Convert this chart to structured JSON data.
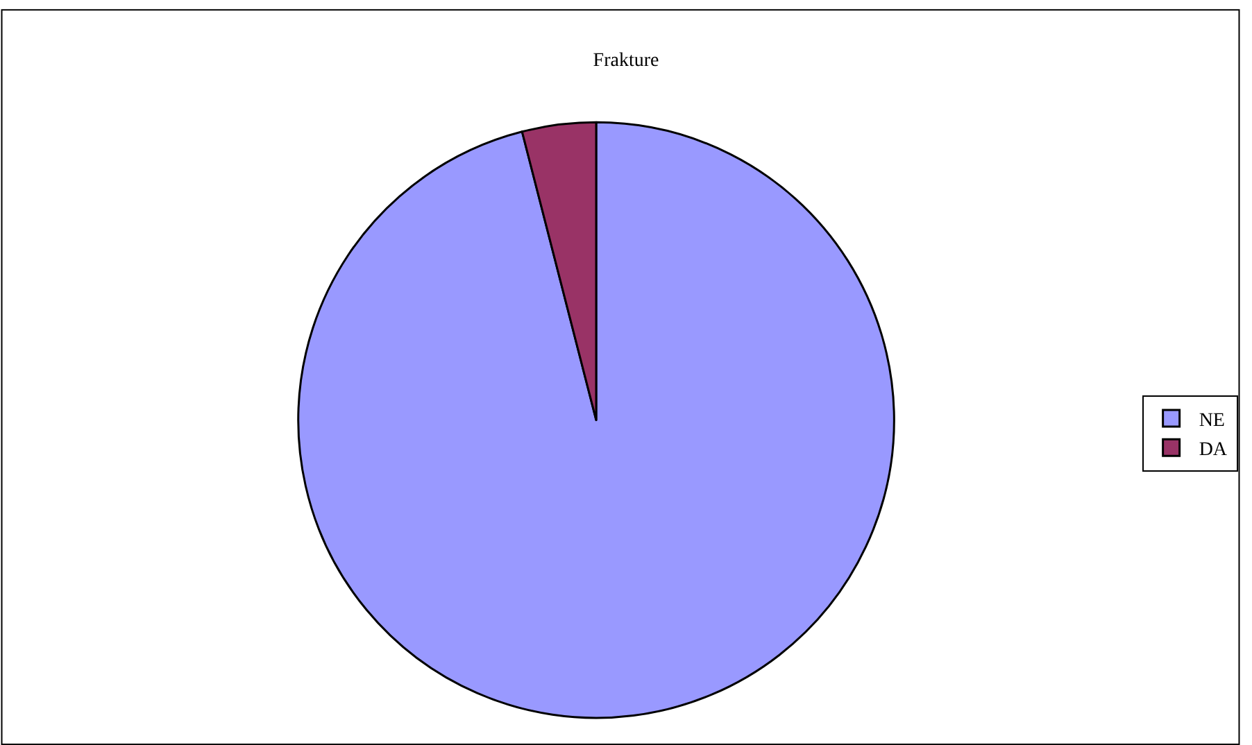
{
  "chart_data": {
    "type": "pie",
    "title": "Frakture",
    "categories": [
      "NE",
      "DA"
    ],
    "values": [
      96,
      4
    ],
    "colors": [
      "#9999ff",
      "#993366"
    ],
    "legend": "right"
  }
}
